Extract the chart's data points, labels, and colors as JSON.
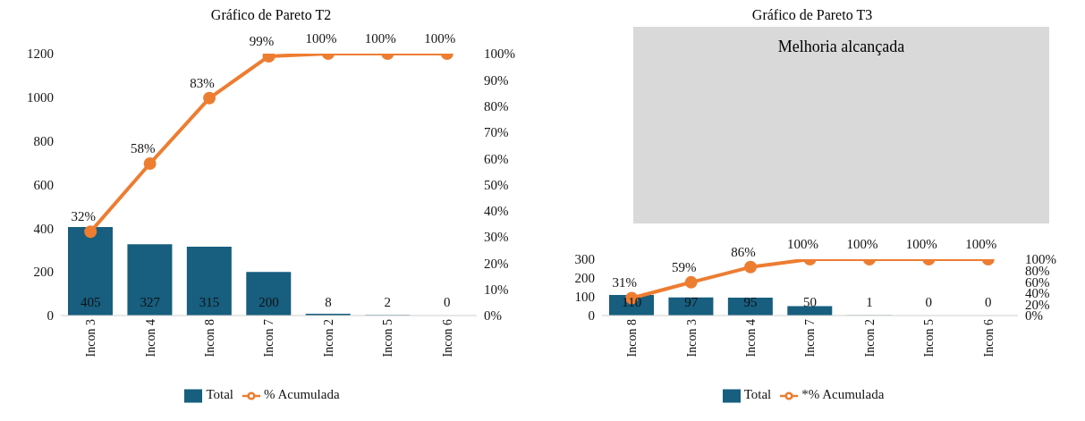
{
  "chart_data": [
    {
      "type": "bar",
      "title": "Gráfico de Pareto T2",
      "categories": [
        "Incon 3",
        "Incon 4",
        "Incon 8",
        "Incon 7",
        "Incon 2",
        "Incon 5",
        "Incon 6"
      ],
      "series": [
        {
          "name": "Total",
          "color": "#175e7f",
          "values": [
            405,
            327,
            315,
            200,
            8,
            2,
            0
          ],
          "value_labels": [
            "405",
            "327",
            "315",
            "200",
            "8",
            "2",
            "0"
          ]
        },
        {
          "name": "% Acumulada",
          "type": "line",
          "axis": "y2",
          "color": "#ed7d31",
          "values": [
            32,
            58,
            83,
            99,
            100,
            100,
            100
          ],
          "value_labels": [
            "32%",
            "58%",
            "83%",
            "99%",
            "100%",
            "100%",
            "100%"
          ]
        }
      ],
      "ylim": [
        0,
        1200
      ],
      "yticks": [
        0,
        200,
        400,
        600,
        800,
        1000,
        1200
      ],
      "y2lim": [
        0,
        100
      ],
      "y2ticks": [
        {
          "value": 0,
          "label": "0%"
        },
        {
          "value": 10,
          "label": "10%"
        },
        {
          "value": 20,
          "label": "20%"
        },
        {
          "value": 30,
          "label": "30%"
        },
        {
          "value": 40,
          "label": "40%"
        },
        {
          "value": 50,
          "label": "50%"
        },
        {
          "value": 60,
          "label": "60%"
        },
        {
          "value": 70,
          "label": "70%"
        },
        {
          "value": 80,
          "label": "80%"
        },
        {
          "value": 90,
          "label": "90%"
        },
        {
          "value": 100,
          "label": "100%"
        }
      ],
      "legend": "bottom",
      "marker": "circle",
      "grid": false
    },
    {
      "type": "bar",
      "title": "Gráfico de Pareto T3",
      "annotations": [
        "Melhoria alcançada"
      ],
      "categories": [
        "Incon 8",
        "Incon 3",
        "Incon 4",
        "Incon 7",
        "Incon 2",
        "Incon 5",
        "Incon 6"
      ],
      "series": [
        {
          "name": "Total",
          "color": "#175e7f",
          "values": [
            110,
            97,
            95,
            50,
            1,
            0,
            0
          ],
          "value_labels": [
            "110",
            "97",
            "95",
            "50",
            "1",
            "0",
            "0"
          ]
        },
        {
          "name": "*% Acumulada",
          "type": "line",
          "axis": "y2",
          "color": "#ed7d31",
          "values": [
            31,
            59,
            86,
            100,
            100,
            100,
            100
          ],
          "value_labels": [
            "31%",
            "59%",
            "86%",
            "100%",
            "100%",
            "100%",
            "100%"
          ]
        }
      ],
      "ylim": [
        0,
        300
      ],
      "yticks": [
        0,
        100,
        200,
        300
      ],
      "y2lim": [
        0,
        100
      ],
      "y2ticks": [
        {
          "value": 0,
          "label": "0%"
        },
        {
          "value": 20,
          "label": "20%"
        },
        {
          "value": 40,
          "label": "40%"
        },
        {
          "value": 60,
          "label": "60%"
        },
        {
          "value": 80,
          "label": "80%"
        },
        {
          "value": 100,
          "label": "100%"
        }
      ],
      "legend": "bottom",
      "marker": "circle",
      "grid": false
    }
  ]
}
